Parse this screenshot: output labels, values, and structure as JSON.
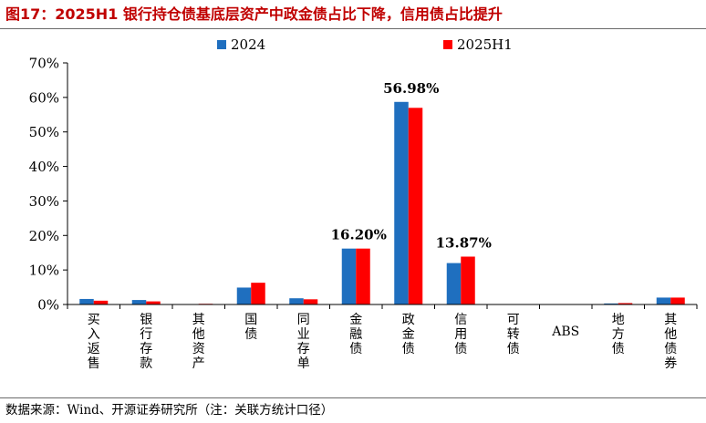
{
  "title": "图17：2025H1 银行持仓债基底层资产中政金债占比下降，信用债占比提升",
  "source": "数据来源：Wind、开源证券研究所（注：关联方统计口径）",
  "colors": {
    "2024": "#1f6fbf",
    "2025H1": "#ff0000"
  },
  "chart_data": {
    "type": "bar",
    "title": "图17：2025H1 银行持仓债基底层资产中政金债占比下降，信用债占比提升",
    "xlabel": "",
    "ylabel": "",
    "ylim": [
      0,
      70
    ],
    "yticks": [
      "0%",
      "10%",
      "20%",
      "30%",
      "40%",
      "50%",
      "60%",
      "70%"
    ],
    "grid": false,
    "legend": "top-center",
    "categories": [
      "买入返售",
      "银行存款",
      "其他资产",
      "国债",
      "同业存单",
      "金融债",
      "政金债",
      "信用债",
      "可转债",
      "ABS",
      "地方债",
      "其他债券"
    ],
    "series": [
      {
        "name": "2024",
        "values": [
          1.6,
          1.3,
          0.1,
          4.9,
          1.8,
          16.2,
          58.7,
          12.0,
          0.0,
          0.0,
          0.3,
          2.0
        ]
      },
      {
        "name": "2025H1",
        "values": [
          1.1,
          0.9,
          0.2,
          6.3,
          1.5,
          16.2,
          56.98,
          13.87,
          0.0,
          0.0,
          0.4,
          2.0
        ]
      }
    ],
    "annotations": [
      {
        "category": "金融债",
        "text": "16.20%"
      },
      {
        "category": "政金债",
        "text": "56.98%"
      },
      {
        "category": "信用债",
        "text": "13.87%"
      }
    ]
  }
}
